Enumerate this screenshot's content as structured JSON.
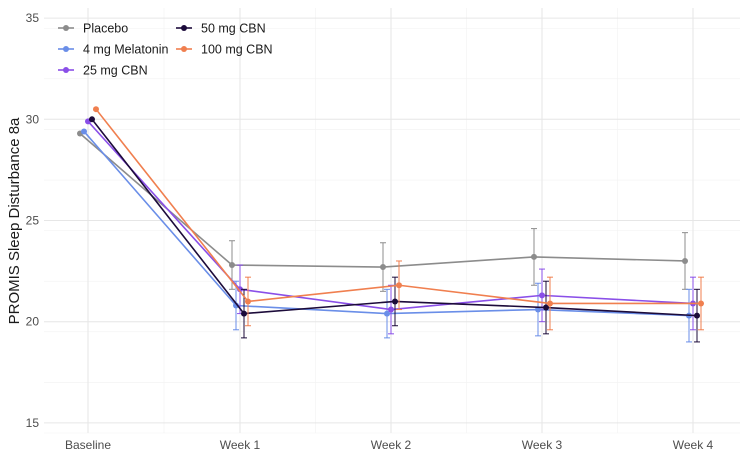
{
  "chart_data": {
    "type": "line",
    "title": "",
    "xlabel": "",
    "ylabel": "PROMIS Sleep Disturbance 8a",
    "ylim": [
      14.5,
      35.5
    ],
    "yticks": [
      15,
      20,
      25,
      30,
      35
    ],
    "grid": true,
    "legend_position": "top-left",
    "categories": [
      "Baseline",
      "Week 1",
      "Week 2",
      "Week 3",
      "Week 4"
    ],
    "series": [
      {
        "name": "Placebo",
        "color": "#8c8c8c",
        "values": [
          29.3,
          22.8,
          22.7,
          23.2,
          23.0
        ],
        "err_low": [
          null,
          21.6,
          21.5,
          21.8,
          21.6
        ],
        "err_high": [
          null,
          24.0,
          23.9,
          24.6,
          24.4
        ]
      },
      {
        "name": "4 mg Melatonin",
        "color": "#6a8ee8",
        "values": [
          29.4,
          20.8,
          20.4,
          20.6,
          20.3
        ],
        "err_low": [
          null,
          19.6,
          19.2,
          19.3,
          19.0
        ],
        "err_high": [
          null,
          22.0,
          21.6,
          21.9,
          21.6
        ]
      },
      {
        "name": "25 mg CBN",
        "color": "#8a4fe8",
        "values": [
          29.9,
          21.6,
          20.6,
          21.3,
          20.9
        ],
        "err_low": [
          null,
          20.4,
          19.4,
          20.0,
          19.6
        ],
        "err_high": [
          null,
          22.8,
          21.8,
          22.6,
          22.2
        ]
      },
      {
        "name": "50 mg CBN",
        "color": "#1c0b3a",
        "values": [
          30.0,
          20.4,
          21.0,
          20.7,
          20.3
        ],
        "err_low": [
          null,
          19.2,
          19.8,
          19.4,
          19.0
        ],
        "err_high": [
          null,
          21.6,
          22.2,
          22.0,
          21.6
        ]
      },
      {
        "name": "100 mg CBN",
        "color": "#f07f4f",
        "values": [
          30.5,
          21.0,
          21.8,
          20.9,
          20.9
        ],
        "err_low": [
          null,
          19.8,
          20.6,
          19.6,
          19.6
        ],
        "err_high": [
          null,
          22.2,
          23.0,
          22.2,
          22.2
        ]
      }
    ]
  }
}
